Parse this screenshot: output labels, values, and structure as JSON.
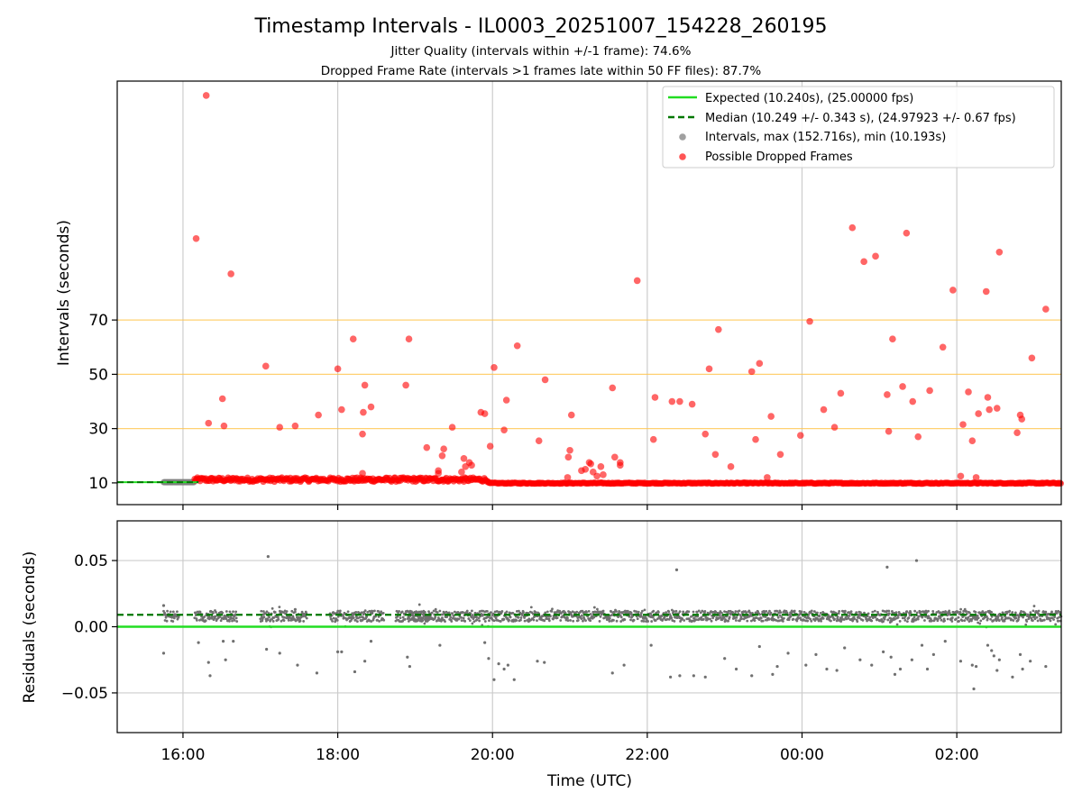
{
  "chart_data": [
    {
      "type": "scatter",
      "title": "Timestamp Intervals - IL0003_20251007_154228_260195",
      "subtitle_1": "Jitter Quality (intervals within +/-1 frame): 74.6%",
      "subtitle_2": "Dropped Frame Rate (intervals >1 frames late within 50 FF files): 87.7%",
      "xlabel": "",
      "ylabel": "Intervals (seconds)",
      "x_unit": "hours since 15:00 UTC (hours >= 24 are after midnight)",
      "xlim": [
        0.15,
        12.35
      ],
      "ylim": [
        2,
        158
      ],
      "yticks": [
        "10",
        "30",
        "50",
        "70"
      ],
      "ytick_values": [
        10,
        30,
        50,
        70
      ],
      "xtick_values": [
        1,
        3,
        5,
        7,
        9,
        11
      ],
      "reference_lines_y": [
        30,
        50,
        70
      ],
      "grid": true,
      "legend_position": "top-right",
      "legend": [
        {
          "label": "Expected (10.240s), (25.00000 fps)",
          "color": "#22dd22",
          "style": "solid-line"
        },
        {
          "label": "Median (10.249 +/- 0.343 s), (24.97923 +/- 0.67 fps)",
          "color": "#007700",
          "style": "dashed-line"
        },
        {
          "label": "Intervals, max (152.716s), min (10.193s)",
          "color": "#a0a0a0",
          "style": "marker"
        },
        {
          "label": "Possible Dropped Frames",
          "color": "#ff5555",
          "style": "marker"
        }
      ],
      "expected_value": 10.24,
      "median_value": 10.249,
      "series": [
        {
          "name": "Intervals, max (152.716s), min (10.193s)",
          "color": "#808080",
          "segments": [
            [
              0.75,
              1.15
            ]
          ],
          "value": 10.24
        },
        {
          "name": "Possible Dropped Frames",
          "color": "#ff0000",
          "band_segments": [
            [
              1.15,
              4.95
            ],
            [
              4.95,
              5.6
            ],
            [
              5.6,
              12.35
            ]
          ],
          "band_values": [
            11.0,
            10.3,
            10.3
          ],
          "points": [
            [
              1.3,
              152.7
            ],
            [
              1.17,
              100.0
            ],
            [
              1.33,
              32.0
            ],
            [
              1.51,
              41.0
            ],
            [
              1.53,
              31.0
            ],
            [
              1.62,
              87.0
            ],
            [
              2.07,
              53.0
            ],
            [
              2.25,
              30.5
            ],
            [
              2.45,
              31.0
            ],
            [
              2.75,
              35.0
            ],
            [
              3.0,
              52.0
            ],
            [
              3.05,
              37.0
            ],
            [
              3.2,
              63.0
            ],
            [
              3.33,
              36.0
            ],
            [
              3.35,
              46.0
            ],
            [
              3.32,
              28.0
            ],
            [
              3.43,
              38.0
            ],
            [
              3.32,
              13.5
            ],
            [
              3.88,
              46.0
            ],
            [
              3.92,
              63.0
            ],
            [
              4.15,
              23.0
            ],
            [
              4.3,
              14.5
            ],
            [
              4.3,
              13.5
            ],
            [
              4.35,
              20.0
            ],
            [
              4.37,
              22.5
            ],
            [
              4.48,
              30.5
            ],
            [
              4.6,
              14.0
            ],
            [
              4.63,
              19.0
            ],
            [
              4.65,
              16.0
            ],
            [
              4.7,
              17.5
            ],
            [
              4.73,
              16.5
            ],
            [
              4.85,
              36.0
            ],
            [
              4.9,
              35.5
            ],
            [
              4.97,
              23.5
            ],
            [
              5.02,
              52.5
            ],
            [
              5.15,
              29.5
            ],
            [
              5.18,
              40.5
            ],
            [
              5.32,
              60.5
            ],
            [
              5.6,
              25.5
            ],
            [
              5.68,
              48.0
            ],
            [
              5.97,
              12.0
            ],
            [
              5.98,
              19.5
            ],
            [
              6.0,
              22.0
            ],
            [
              6.02,
              35.0
            ],
            [
              6.15,
              14.5
            ],
            [
              6.2,
              15.0
            ],
            [
              6.25,
              17.5
            ],
            [
              6.27,
              17.0
            ],
            [
              6.3,
              14.0
            ],
            [
              6.35,
              12.5
            ],
            [
              6.4,
              16.0
            ],
            [
              6.43,
              13.0
            ],
            [
              6.55,
              45.0
            ],
            [
              6.58,
              19.5
            ],
            [
              6.65,
              17.5
            ],
            [
              6.65,
              16.5
            ],
            [
              6.87,
              84.5
            ],
            [
              7.08,
              26.0
            ],
            [
              7.1,
              41.5
            ],
            [
              7.32,
              40.0
            ],
            [
              7.42,
              40.0
            ],
            [
              7.58,
              39.0
            ],
            [
              7.75,
              28.0
            ],
            [
              7.8,
              52.0
            ],
            [
              7.88,
              20.5
            ],
            [
              7.92,
              66.5
            ],
            [
              8.08,
              16.0
            ],
            [
              8.35,
              51.0
            ],
            [
              8.4,
              26.0
            ],
            [
              8.45,
              54.0
            ],
            [
              8.55,
              12.0
            ],
            [
              8.6,
              34.5
            ],
            [
              8.72,
              20.5
            ],
            [
              8.98,
              27.5
            ],
            [
              9.1,
              69.5
            ],
            [
              9.28,
              37.0
            ],
            [
              9.42,
              30.5
            ],
            [
              9.5,
              43.0
            ],
            [
              9.65,
              104.0
            ],
            [
              9.8,
              91.5
            ],
            [
              9.95,
              93.5
            ],
            [
              10.1,
              42.5
            ],
            [
              10.12,
              29.0
            ],
            [
              10.17,
              63.0
            ],
            [
              10.3,
              45.5
            ],
            [
              10.35,
              102.0
            ],
            [
              10.43,
              40.0
            ],
            [
              10.5,
              27.0
            ],
            [
              10.65,
              44.0
            ],
            [
              10.82,
              60.0
            ],
            [
              10.95,
              81.0
            ],
            [
              11.08,
              31.5
            ],
            [
              11.15,
              43.5
            ],
            [
              11.2,
              25.5
            ],
            [
              11.28,
              35.5
            ],
            [
              11.38,
              80.5
            ],
            [
              11.4,
              41.5
            ],
            [
              11.42,
              37.0
            ],
            [
              11.52,
              37.5
            ],
            [
              11.55,
              95.0
            ],
            [
              11.78,
              28.5
            ],
            [
              11.82,
              35.0
            ],
            [
              11.84,
              33.5
            ],
            [
              11.97,
              56.0
            ],
            [
              12.15,
              74.0
            ],
            [
              11.05,
              12.5
            ],
            [
              11.25,
              12.0
            ]
          ]
        },
        {
          "name": "Expected (10.240s), (25.00000 fps)",
          "color": "#22dd22",
          "value": 10.24
        },
        {
          "name": "Median (10.249 +/- 0.343 s), (24.97923 +/- 0.67 fps)",
          "color": "#007700",
          "value": 10.249
        }
      ]
    },
    {
      "type": "scatter",
      "title": "",
      "xlabel": "Time (UTC)",
      "ylabel": "Residuals (seconds)",
      "x_unit": "hours since 15:00 UTC (hours >= 24 are after midnight)",
      "xlim": [
        0.15,
        12.35
      ],
      "ylim": [
        -0.08,
        0.08
      ],
      "xticks": [
        "16:00",
        "18:00",
        "20:00",
        "22:00",
        "00:00",
        "02:00"
      ],
      "xtick_values": [
        1,
        3,
        5,
        7,
        9,
        11
      ],
      "yticks": [
        "0.05",
        "0.00",
        "−0.05"
      ],
      "ytick_values": [
        0.05,
        0.0,
        -0.05
      ],
      "grid": true,
      "expected_residual": 0.0,
      "median_residual": 0.009,
      "series": [
        {
          "name": "Residuals",
          "color": "#707070",
          "dense_segments": [
            [
              0.75,
              0.95
            ],
            [
              1.15,
              1.7
            ],
            [
              2.0,
              2.6
            ],
            [
              2.9,
              3.6
            ],
            [
              3.75,
              4.2
            ],
            [
              3.9,
              12.35
            ]
          ],
          "dense_center": 0.008,
          "outliers": [
            [
              0.75,
              0.016
            ],
            [
              0.75,
              -0.02
            ],
            [
              2.1,
              0.053
            ],
            [
              1.2,
              -0.012
            ],
            [
              1.33,
              -0.027
            ],
            [
              1.35,
              -0.037
            ],
            [
              1.52,
              -0.011
            ],
            [
              1.65,
              -0.011
            ],
            [
              1.55,
              -0.025
            ],
            [
              2.08,
              -0.017
            ],
            [
              2.25,
              -0.02
            ],
            [
              2.45,
              0.013
            ],
            [
              2.48,
              -0.029
            ],
            [
              2.73,
              -0.035
            ],
            [
              3.0,
              -0.019
            ],
            [
              3.05,
              -0.019
            ],
            [
              3.22,
              -0.034
            ],
            [
              3.35,
              -0.026
            ],
            [
              3.43,
              -0.011
            ],
            [
              3.9,
              -0.023
            ],
            [
              3.93,
              -0.03
            ],
            [
              4.32,
              -0.014
            ],
            [
              4.9,
              -0.012
            ],
            [
              4.95,
              -0.024
            ],
            [
              5.02,
              -0.04
            ],
            [
              5.08,
              -0.028
            ],
            [
              5.15,
              -0.032
            ],
            [
              5.2,
              -0.029
            ],
            [
              5.28,
              -0.04
            ],
            [
              5.58,
              -0.026
            ],
            [
              5.67,
              -0.027
            ],
            [
              6.55,
              -0.035
            ],
            [
              6.7,
              -0.029
            ],
            [
              7.05,
              -0.014
            ],
            [
              7.38,
              0.043
            ],
            [
              7.3,
              -0.038
            ],
            [
              7.42,
              -0.037
            ],
            [
              7.6,
              -0.037
            ],
            [
              7.75,
              -0.038
            ],
            [
              8.0,
              -0.024
            ],
            [
              8.15,
              -0.032
            ],
            [
              8.35,
              -0.037
            ],
            [
              8.45,
              -0.015
            ],
            [
              8.62,
              -0.036
            ],
            [
              8.68,
              -0.03
            ],
            [
              8.82,
              -0.02
            ],
            [
              9.05,
              -0.029
            ],
            [
              9.18,
              -0.021
            ],
            [
              9.32,
              -0.032
            ],
            [
              9.45,
              -0.033
            ],
            [
              9.55,
              -0.016
            ],
            [
              9.75,
              -0.025
            ],
            [
              9.9,
              -0.029
            ],
            [
              10.05,
              -0.019
            ],
            [
              10.1,
              0.045
            ],
            [
              10.15,
              -0.023
            ],
            [
              10.2,
              -0.036
            ],
            [
              10.27,
              -0.032
            ],
            [
              10.42,
              -0.025
            ],
            [
              10.48,
              0.05
            ],
            [
              10.55,
              -0.014
            ],
            [
              10.62,
              -0.032
            ],
            [
              10.7,
              -0.021
            ],
            [
              10.85,
              -0.011
            ],
            [
              11.05,
              -0.026
            ],
            [
              11.2,
              -0.029
            ],
            [
              11.22,
              -0.047
            ],
            [
              11.25,
              -0.03
            ],
            [
              11.4,
              -0.014
            ],
            [
              11.45,
              -0.018
            ],
            [
              11.48,
              -0.022
            ],
            [
              11.52,
              -0.033
            ],
            [
              11.55,
              -0.025
            ],
            [
              11.72,
              -0.038
            ],
            [
              11.82,
              -0.021
            ],
            [
              11.85,
              -0.032
            ],
            [
              11.95,
              -0.026
            ],
            [
              12.15,
              -0.03
            ]
          ]
        },
        {
          "name": "Expected",
          "color": "#22dd22",
          "value": 0.0
        },
        {
          "name": "Median",
          "color": "#007700",
          "value": 0.009
        }
      ]
    }
  ]
}
